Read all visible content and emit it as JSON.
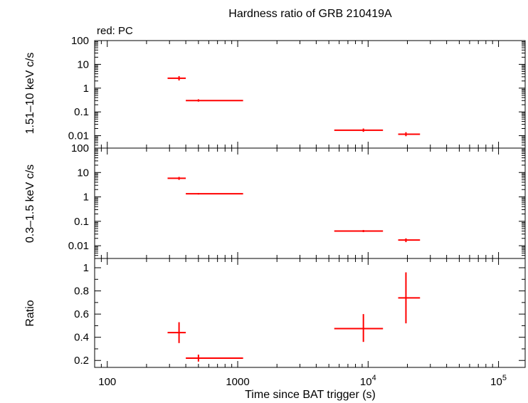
{
  "chart_data": {
    "type": "scatter",
    "title": "Hardness ratio of GRB 210419A",
    "legend_note": "red: PC",
    "xlabel": "Time since BAT trigger (s)",
    "x_scale": "log",
    "xlim": [
      80,
      160000
    ],
    "x_tick_labels": [
      {
        "value": 100,
        "label": "100"
      },
      {
        "value": 1000,
        "label": "1000"
      },
      {
        "value": 10000,
        "label": "10",
        "sup": "4"
      },
      {
        "value": 100000,
        "label": "10",
        "sup": "5"
      }
    ],
    "color": "#ff0000",
    "panels": [
      {
        "ylabel": "1.51–10 keV c/s",
        "y_scale": "log",
        "ylim": [
          0.003,
          100
        ],
        "y_ticks": [
          {
            "value": 100,
            "label": "100"
          },
          {
            "value": 10,
            "label": "10"
          },
          {
            "value": 1,
            "label": "1"
          },
          {
            "value": 0.1,
            "label": "0.1"
          },
          {
            "value": 0.01,
            "label": "0.01"
          }
        ],
        "points": [
          {
            "x": 355,
            "xerr": [
              290,
              400
            ],
            "y": 2.6,
            "yerr": [
              2.1,
              3.2
            ]
          },
          {
            "x": 500,
            "xerr": [
              400,
              1100
            ],
            "y": 0.3,
            "yerr": [
              0.27,
              0.34
            ]
          },
          {
            "x": 9200,
            "xerr": [
              5500,
              13000
            ],
            "y": 0.017,
            "yerr": [
              0.0145,
              0.02
            ]
          },
          {
            "x": 19500,
            "xerr": [
              17000,
              25000
            ],
            "y": 0.0115,
            "yerr": [
              0.0095,
              0.014
            ]
          }
        ]
      },
      {
        "ylabel": "0.3–1.5 keV c/s",
        "y_scale": "log",
        "ylim": [
          0.003,
          100
        ],
        "y_ticks": [
          {
            "value": 100,
            "label": "100"
          },
          {
            "value": 10,
            "label": "10"
          },
          {
            "value": 1,
            "label": "1"
          },
          {
            "value": 0.1,
            "label": "0.1"
          },
          {
            "value": 0.01,
            "label": "0.01"
          }
        ],
        "points": [
          {
            "x": 355,
            "xerr": [
              290,
              400
            ],
            "y": 5.8,
            "yerr": [
              5.0,
              6.6
            ]
          },
          {
            "x": 500,
            "xerr": [
              400,
              1100
            ],
            "y": 1.35,
            "yerr": [
              1.25,
              1.45
            ]
          },
          {
            "x": 9200,
            "xerr": [
              5500,
              13000
            ],
            "y": 0.04,
            "yerr": [
              0.036,
              0.044
            ]
          },
          {
            "x": 19500,
            "xerr": [
              17000,
              25000
            ],
            "y": 0.017,
            "yerr": [
              0.014,
              0.02
            ]
          }
        ]
      },
      {
        "ylabel": "Ratio",
        "y_scale": "linear",
        "ylim": [
          0.14,
          1.08
        ],
        "y_ticks": [
          {
            "value": 1,
            "label": "1"
          },
          {
            "value": 0.8,
            "label": "0.8"
          },
          {
            "value": 0.6,
            "label": "0.6"
          },
          {
            "value": 0.4,
            "label": "0.4"
          },
          {
            "value": 0.2,
            "label": "0.2"
          }
        ],
        "points": [
          {
            "x": 355,
            "xerr": [
              290,
              400
            ],
            "y": 0.44,
            "yerr": [
              0.35,
              0.53
            ]
          },
          {
            "x": 500,
            "xerr": [
              400,
              1100
            ],
            "y": 0.22,
            "yerr": [
              0.19,
              0.25
            ]
          },
          {
            "x": 9200,
            "xerr": [
              5500,
              13000
            ],
            "y": 0.475,
            "yerr": [
              0.36,
              0.6
            ]
          },
          {
            "x": 19500,
            "xerr": [
              17000,
              25000
            ],
            "y": 0.74,
            "yerr": [
              0.52,
              0.96
            ]
          }
        ]
      }
    ]
  }
}
